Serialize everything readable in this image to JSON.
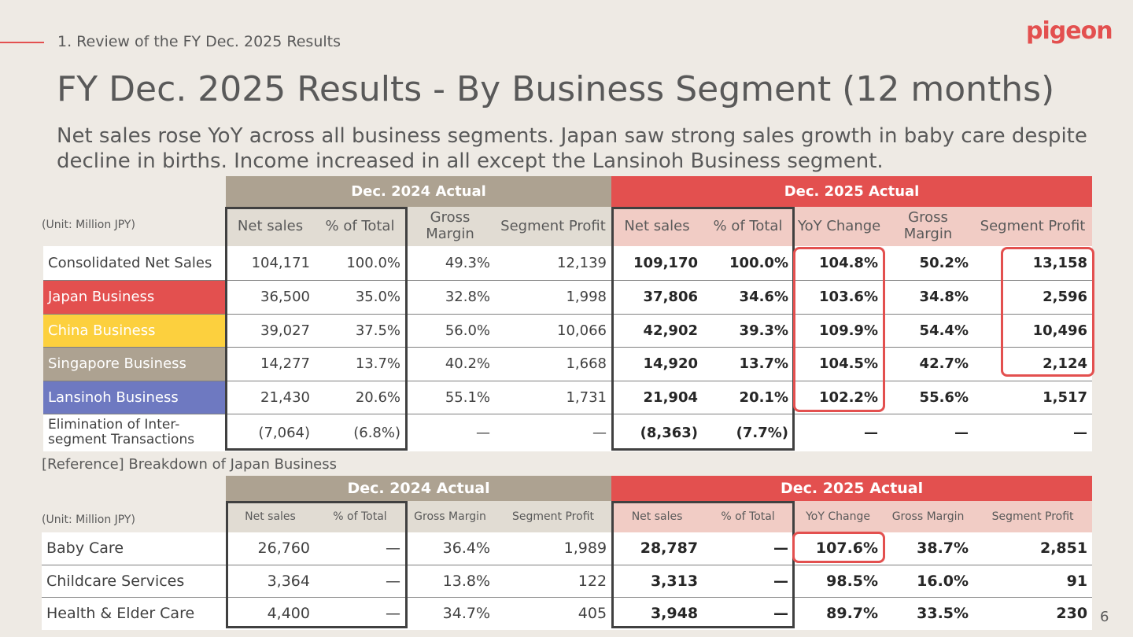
{
  "header": {
    "section": "1. Review of the FY Dec. 2025 Results",
    "logo_text": "pigeon",
    "title": "FY Dec. 2025 Results - By Business Segment (12 months)",
    "subtitle": "Net sales rose YoY across all business segments. Japan saw strong sales growth in baby care despite decline in births. Income increased in all except the Lansinoh Business segment."
  },
  "colors": {
    "accent_red": "#e3504f",
    "taupe": "#ada291",
    "china_yellow": "#fcd03e",
    "lansinoh_blue": "#6e79c1",
    "background": "#eeeae4"
  },
  "table1": {
    "unit": "(Unit: Million JPY)",
    "group_2024": "Dec. 2024 Actual",
    "group_2025": "Dec. 2025 Actual",
    "columns": [
      "Net sales",
      "% of Total",
      "Gross Margin",
      "Segment Profit",
      "Net sales",
      "% of Total",
      "YoY Change",
      "Gross Margin",
      "Segment Profit"
    ],
    "rows": [
      {
        "label": "Consolidated Net Sales",
        "values": [
          "104,171",
          "100.0%",
          "49.3%",
          "12,139",
          "109,170",
          "100.0%",
          "104.8%",
          "50.2%",
          "13,158"
        ]
      },
      {
        "label": "Japan Business",
        "values": [
          "36,500",
          "35.0%",
          "32.8%",
          "1,998",
          "37,806",
          "34.6%",
          "103.6%",
          "34.8%",
          "2,596"
        ]
      },
      {
        "label": "China Business",
        "values": [
          "39,027",
          "37.5%",
          "56.0%",
          "10,066",
          "42,902",
          "39.3%",
          "109.9%",
          "54.4%",
          "10,496"
        ]
      },
      {
        "label": "Singapore Business",
        "values": [
          "14,277",
          "13.7%",
          "40.2%",
          "1,668",
          "14,920",
          "13.7%",
          "104.5%",
          "42.7%",
          "2,124"
        ]
      },
      {
        "label": "Lansinoh Business",
        "values": [
          "21,430",
          "20.6%",
          "55.1%",
          "1,731",
          "21,904",
          "20.1%",
          "102.2%",
          "55.6%",
          "1,517"
        ]
      },
      {
        "label": "Elimination of Inter-segment Transactions",
        "values": [
          "(7,064)",
          "(6.8%)",
          "—",
          "—",
          "(8,363)",
          "(7.7%)",
          "—",
          "—",
          "—"
        ]
      }
    ]
  },
  "reference_title": "[Reference] Breakdown of Japan Business",
  "table2": {
    "unit": "(Unit: Million JPY)",
    "group_2024": "Dec. 2024 Actual",
    "group_2025": "Dec. 2025 Actual",
    "columns": [
      "Net sales",
      "% of Total",
      "Gross Margin",
      "Segment Profit",
      "Net sales",
      "% of Total",
      "YoY Change",
      "Gross Margin",
      "Segment Profit"
    ],
    "rows": [
      {
        "label": "Baby Care",
        "values": [
          "26,760",
          "—",
          "36.4%",
          "1,989",
          "28,787",
          "—",
          "107.6%",
          "38.7%",
          "2,851"
        ]
      },
      {
        "label": "Childcare Services",
        "values": [
          "3,364",
          "—",
          "13.8%",
          "122",
          "3,313",
          "—",
          "98.5%",
          "16.0%",
          "91"
        ]
      },
      {
        "label": "Health & Elder Care",
        "values": [
          "4,400",
          "—",
          "34.7%",
          "405",
          "3,948",
          "—",
          "89.7%",
          "33.5%",
          "230"
        ]
      }
    ]
  },
  "page_number": "6"
}
